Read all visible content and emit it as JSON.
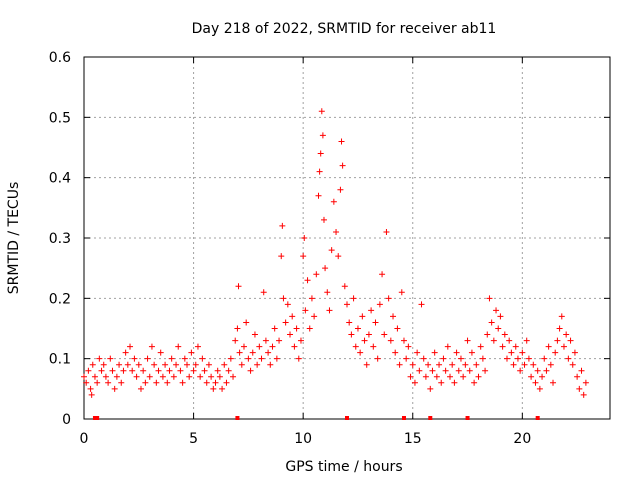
{
  "chart_data": {
    "type": "scatter",
    "title": "Day 218 of 2022, SRMTID for receiver ab11",
    "xlabel": "GPS time / hours",
    "ylabel": "SRMTID / TECUs",
    "xlim": [
      0,
      24
    ],
    "ylim": [
      0,
      0.6
    ],
    "x_ticks": [
      0,
      5,
      10,
      15,
      20
    ],
    "x_tick_labels": [
      "0",
      "5",
      "10",
      "15",
      "20"
    ],
    "y_ticks": [
      0,
      0.1,
      0.2,
      0.3,
      0.4,
      0.5,
      0.6
    ],
    "y_tick_labels": [
      "0",
      "0.1",
      "0.2",
      "0.3",
      "0.4",
      "0.5",
      "0.6"
    ],
    "grid": true,
    "marker": "plus",
    "color": "#ff0000",
    "series": [
      {
        "name": "SRMTID",
        "points": [
          [
            0.0,
            0.07
          ],
          [
            0.1,
            0.06
          ],
          [
            0.2,
            0.08
          ],
          [
            0.3,
            0.05
          ],
          [
            0.35,
            0.04
          ],
          [
            0.4,
            0.09
          ],
          [
            0.5,
            0.07
          ],
          [
            0.6,
            0.06
          ],
          [
            0.7,
            0.1
          ],
          [
            0.8,
            0.08
          ],
          [
            0.9,
            0.09
          ],
          [
            1.0,
            0.07
          ],
          [
            1.1,
            0.06
          ],
          [
            1.2,
            0.1
          ],
          [
            1.3,
            0.08
          ],
          [
            1.4,
            0.05
          ],
          [
            1.5,
            0.07
          ],
          [
            1.6,
            0.09
          ],
          [
            1.7,
            0.06
          ],
          [
            1.8,
            0.08
          ],
          [
            1.9,
            0.11
          ],
          [
            2.0,
            0.09
          ],
          [
            2.1,
            0.12
          ],
          [
            2.2,
            0.08
          ],
          [
            2.3,
            0.1
          ],
          [
            2.4,
            0.07
          ],
          [
            2.5,
            0.09
          ],
          [
            2.6,
            0.05
          ],
          [
            2.7,
            0.08
          ],
          [
            2.8,
            0.06
          ],
          [
            2.9,
            0.1
          ],
          [
            3.0,
            0.07
          ],
          [
            3.1,
            0.12
          ],
          [
            3.2,
            0.09
          ],
          [
            3.3,
            0.06
          ],
          [
            3.4,
            0.08
          ],
          [
            3.5,
            0.11
          ],
          [
            3.6,
            0.07
          ],
          [
            3.7,
            0.09
          ],
          [
            3.8,
            0.06
          ],
          [
            3.9,
            0.08
          ],
          [
            4.0,
            0.1
          ],
          [
            4.1,
            0.07
          ],
          [
            4.2,
            0.09
          ],
          [
            4.3,
            0.12
          ],
          [
            4.4,
            0.08
          ],
          [
            4.5,
            0.06
          ],
          [
            4.6,
            0.1
          ],
          [
            4.7,
            0.09
          ],
          [
            4.8,
            0.07
          ],
          [
            4.9,
            0.11
          ],
          [
            5.0,
            0.08
          ],
          [
            5.1,
            0.09
          ],
          [
            5.2,
            0.12
          ],
          [
            5.3,
            0.07
          ],
          [
            5.4,
            0.1
          ],
          [
            5.5,
            0.08
          ],
          [
            5.6,
            0.06
          ],
          [
            5.7,
            0.09
          ],
          [
            5.8,
            0.07
          ],
          [
            5.9,
            0.05
          ],
          [
            6.0,
            0.06
          ],
          [
            6.1,
            0.08
          ],
          [
            6.2,
            0.07
          ],
          [
            6.3,
            0.05
          ],
          [
            6.4,
            0.09
          ],
          [
            6.5,
            0.06
          ],
          [
            6.6,
            0.08
          ],
          [
            6.7,
            0.1
          ],
          [
            6.8,
            0.07
          ],
          [
            6.9,
            0.13
          ],
          [
            7.0,
            0.15
          ],
          [
            7.05,
            0.22
          ],
          [
            7.1,
            0.11
          ],
          [
            7.2,
            0.09
          ],
          [
            7.3,
            0.12
          ],
          [
            7.4,
            0.16
          ],
          [
            7.5,
            0.1
          ],
          [
            7.6,
            0.08
          ],
          [
            7.7,
            0.11
          ],
          [
            7.8,
            0.14
          ],
          [
            7.9,
            0.09
          ],
          [
            8.0,
            0.12
          ],
          [
            8.1,
            0.1
          ],
          [
            8.2,
            0.21
          ],
          [
            8.3,
            0.13
          ],
          [
            8.4,
            0.11
          ],
          [
            8.5,
            0.09
          ],
          [
            8.6,
            0.12
          ],
          [
            8.7,
            0.15
          ],
          [
            8.8,
            0.1
          ],
          [
            8.9,
            0.13
          ],
          [
            9.0,
            0.27
          ],
          [
            9.05,
            0.32
          ],
          [
            9.1,
            0.2
          ],
          [
            9.2,
            0.16
          ],
          [
            9.3,
            0.19
          ],
          [
            9.4,
            0.14
          ],
          [
            9.5,
            0.17
          ],
          [
            9.6,
            0.12
          ],
          [
            9.7,
            0.15
          ],
          [
            9.8,
            0.1
          ],
          [
            9.9,
            0.13
          ],
          [
            10.0,
            0.27
          ],
          [
            10.05,
            0.3
          ],
          [
            10.1,
            0.18
          ],
          [
            10.2,
            0.23
          ],
          [
            10.3,
            0.15
          ],
          [
            10.4,
            0.2
          ],
          [
            10.5,
            0.17
          ],
          [
            10.6,
            0.24
          ],
          [
            10.7,
            0.37
          ],
          [
            10.75,
            0.41
          ],
          [
            10.8,
            0.44
          ],
          [
            10.85,
            0.51
          ],
          [
            10.9,
            0.47
          ],
          [
            10.95,
            0.33
          ],
          [
            11.0,
            0.25
          ],
          [
            11.1,
            0.21
          ],
          [
            11.2,
            0.18
          ],
          [
            11.3,
            0.28
          ],
          [
            11.4,
            0.36
          ],
          [
            11.5,
            0.31
          ],
          [
            11.6,
            0.27
          ],
          [
            11.7,
            0.38
          ],
          [
            11.75,
            0.46
          ],
          [
            11.8,
            0.42
          ],
          [
            11.9,
            0.22
          ],
          [
            12.0,
            0.19
          ],
          [
            12.1,
            0.16
          ],
          [
            12.2,
            0.14
          ],
          [
            12.3,
            0.2
          ],
          [
            12.4,
            0.12
          ],
          [
            12.5,
            0.15
          ],
          [
            12.6,
            0.11
          ],
          [
            12.7,
            0.17
          ],
          [
            12.8,
            0.13
          ],
          [
            12.9,
            0.09
          ],
          [
            13.0,
            0.14
          ],
          [
            13.1,
            0.18
          ],
          [
            13.2,
            0.12
          ],
          [
            13.3,
            0.16
          ],
          [
            13.4,
            0.1
          ],
          [
            13.5,
            0.19
          ],
          [
            13.6,
            0.24
          ],
          [
            13.7,
            0.14
          ],
          [
            13.8,
            0.31
          ],
          [
            13.9,
            0.2
          ],
          [
            14.0,
            0.13
          ],
          [
            14.1,
            0.17
          ],
          [
            14.2,
            0.11
          ],
          [
            14.3,
            0.15
          ],
          [
            14.4,
            0.09
          ],
          [
            14.5,
            0.21
          ],
          [
            14.6,
            0.13
          ],
          [
            14.7,
            0.1
          ],
          [
            14.8,
            0.12
          ],
          [
            14.9,
            0.07
          ],
          [
            15.0,
            0.09
          ],
          [
            15.1,
            0.06
          ],
          [
            15.2,
            0.11
          ],
          [
            15.3,
            0.08
          ],
          [
            15.4,
            0.19
          ],
          [
            15.5,
            0.1
          ],
          [
            15.6,
            0.07
          ],
          [
            15.7,
            0.09
          ],
          [
            15.8,
            0.05
          ],
          [
            15.9,
            0.08
          ],
          [
            16.0,
            0.11
          ],
          [
            16.1,
            0.07
          ],
          [
            16.2,
            0.09
          ],
          [
            16.3,
            0.06
          ],
          [
            16.4,
            0.1
          ],
          [
            16.5,
            0.08
          ],
          [
            16.6,
            0.12
          ],
          [
            16.7,
            0.07
          ],
          [
            16.8,
            0.09
          ],
          [
            16.9,
            0.06
          ],
          [
            17.0,
            0.11
          ],
          [
            17.1,
            0.08
          ],
          [
            17.2,
            0.1
          ],
          [
            17.3,
            0.07
          ],
          [
            17.4,
            0.09
          ],
          [
            17.5,
            0.13
          ],
          [
            17.6,
            0.08
          ],
          [
            17.7,
            0.11
          ],
          [
            17.8,
            0.06
          ],
          [
            17.9,
            0.09
          ],
          [
            18.0,
            0.07
          ],
          [
            18.1,
            0.12
          ],
          [
            18.2,
            0.1
          ],
          [
            18.3,
            0.08
          ],
          [
            18.4,
            0.14
          ],
          [
            18.5,
            0.2
          ],
          [
            18.6,
            0.16
          ],
          [
            18.7,
            0.13
          ],
          [
            18.8,
            0.18
          ],
          [
            18.9,
            0.15
          ],
          [
            19.0,
            0.17
          ],
          [
            19.1,
            0.12
          ],
          [
            19.2,
            0.14
          ],
          [
            19.3,
            0.1
          ],
          [
            19.4,
            0.13
          ],
          [
            19.5,
            0.11
          ],
          [
            19.6,
            0.09
          ],
          [
            19.7,
            0.12
          ],
          [
            19.8,
            0.1
          ],
          [
            19.9,
            0.08
          ],
          [
            20.0,
            0.11
          ],
          [
            20.1,
            0.09
          ],
          [
            20.2,
            0.13
          ],
          [
            20.3,
            0.1
          ],
          [
            20.4,
            0.07
          ],
          [
            20.5,
            0.09
          ],
          [
            20.6,
            0.06
          ],
          [
            20.7,
            0.08
          ],
          [
            20.8,
            0.05
          ],
          [
            20.9,
            0.07
          ],
          [
            21.0,
            0.1
          ],
          [
            21.1,
            0.08
          ],
          [
            21.2,
            0.12
          ],
          [
            21.3,
            0.09
          ],
          [
            21.4,
            0.06
          ],
          [
            21.5,
            0.11
          ],
          [
            21.6,
            0.13
          ],
          [
            21.7,
            0.15
          ],
          [
            21.8,
            0.17
          ],
          [
            21.9,
            0.12
          ],
          [
            22.0,
            0.14
          ],
          [
            22.1,
            0.1
          ],
          [
            22.2,
            0.13
          ],
          [
            22.3,
            0.09
          ],
          [
            22.4,
            0.11
          ],
          [
            22.5,
            0.07
          ],
          [
            22.6,
            0.05
          ],
          [
            22.7,
            0.08
          ],
          [
            22.8,
            0.04
          ],
          [
            22.9,
            0.06
          ]
        ]
      }
    ],
    "x_axis_markers": [
      0.5,
      0.6,
      7.0,
      12.0,
      14.6,
      15.8,
      17.5,
      20.7
    ]
  }
}
